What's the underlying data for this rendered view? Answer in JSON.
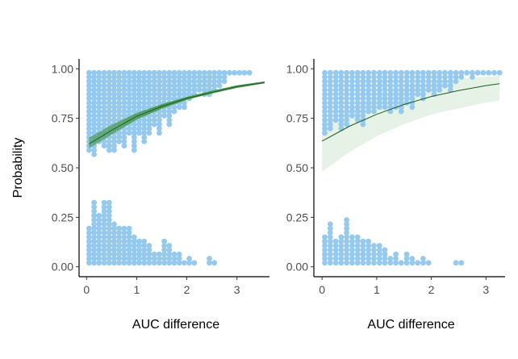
{
  "chart_data": {
    "type": "scatter",
    "ylabel": "Probability",
    "panels": [
      {
        "xlabel": "AUC difference",
        "xlim": [
          -0.15,
          3.65
        ],
        "ylim": [
          -0.05,
          1.05
        ],
        "x_ticks": [
          0,
          1,
          2,
          3
        ],
        "y_ticks": [
          0.0,
          0.25,
          0.5,
          0.75,
          1.0
        ],
        "y_tick_labels": [
          "0.00",
          "0.25",
          "0.50",
          "0.75",
          "1.00"
        ],
        "fit": {
          "x": [
            0.05,
            0.5,
            1.0,
            1.5,
            2.0,
            2.5,
            3.0,
            3.55
          ],
          "mid": [
            0.62,
            0.69,
            0.76,
            0.81,
            0.85,
            0.88,
            0.91,
            0.93
          ],
          "low": [
            0.6,
            0.67,
            0.745,
            0.8,
            0.845,
            0.877,
            0.905,
            0.928
          ],
          "high": [
            0.65,
            0.715,
            0.775,
            0.82,
            0.857,
            0.888,
            0.915,
            0.935
          ]
        },
        "upper_cluster": {
          "x_max": [
            0.05,
            0.15,
            0.25,
            0.35,
            0.45,
            0.55,
            0.65,
            0.75,
            0.85,
            0.95,
            1.05,
            1.15,
            1.25,
            1.35,
            1.45,
            1.55,
            1.65,
            1.75,
            1.85,
            1.95,
            2.05,
            2.15,
            2.25,
            2.35,
            2.45,
            2.55,
            2.65,
            2.75,
            2.85,
            2.95,
            3.05,
            3.15,
            3.25
          ],
          "y_min": [
            0.57,
            0.55,
            0.62,
            0.6,
            0.58,
            0.57,
            0.62,
            0.6,
            0.67,
            0.57,
            0.67,
            0.62,
            0.67,
            0.71,
            0.67,
            0.75,
            0.71,
            0.77,
            0.8,
            0.79,
            0.83,
            0.86,
            0.88,
            0.86,
            0.86,
            0.88,
            0.91,
            0.92,
            0.96,
            0.97,
            0.98,
            0.98,
            0.98
          ]
        },
        "lower_cluster": {
          "x_max": [
            0.05,
            0.15,
            0.25,
            0.35,
            0.45,
            0.55,
            0.65,
            0.75,
            0.85,
            0.95,
            1.05,
            1.15,
            1.25,
            1.35,
            1.45,
            1.55,
            1.65,
            1.75,
            1.85,
            1.95,
            2.05,
            2.15,
            2.45,
            2.55
          ],
          "y_max": [
            0.2,
            0.33,
            0.27,
            0.33,
            0.33,
            0.22,
            0.2,
            0.2,
            0.2,
            0.17,
            0.15,
            0.13,
            0.11,
            0.08,
            0.08,
            0.15,
            0.11,
            0.08,
            0.08,
            0.04,
            0.06,
            0.04,
            0.05,
            0.02
          ]
        }
      },
      {
        "xlabel": "AUC difference",
        "xlim": [
          -0.15,
          3.35
        ],
        "ylim": [
          -0.05,
          1.05
        ],
        "x_ticks": [
          0,
          1,
          2,
          3
        ],
        "y_ticks": [
          0.0,
          0.25,
          0.5,
          0.75,
          1.0
        ],
        "y_tick_labels": [
          "0.00",
          "0.25",
          "0.50",
          "0.75",
          "1.00"
        ],
        "fit": {
          "x": [
            0.0,
            0.5,
            1.0,
            1.5,
            2.0,
            2.5,
            3.0,
            3.25
          ],
          "mid": [
            0.635,
            0.71,
            0.77,
            0.82,
            0.86,
            0.89,
            0.915,
            0.925
          ],
          "low": [
            0.48,
            0.58,
            0.66,
            0.72,
            0.77,
            0.8,
            0.83,
            0.84
          ],
          "high": [
            0.72,
            0.8,
            0.86,
            0.9,
            0.93,
            0.95,
            0.96,
            0.965
          ]
        },
        "upper_cluster": {
          "x_max": [
            0.05,
            0.15,
            0.25,
            0.35,
            0.45,
            0.55,
            0.65,
            0.75,
            0.85,
            0.95,
            1.05,
            1.15,
            1.25,
            1.35,
            1.45,
            1.55,
            1.65,
            1.75,
            1.85,
            1.95,
            2.05,
            2.15,
            2.25,
            2.35,
            2.45,
            2.55,
            2.65,
            2.75,
            2.85,
            2.95,
            3.05,
            3.15,
            3.25
          ],
          "y_min": [
            0.67,
            0.69,
            0.72,
            0.69,
            0.71,
            0.75,
            0.74,
            0.71,
            0.78,
            0.78,
            0.8,
            0.8,
            0.78,
            0.8,
            0.78,
            0.81,
            0.8,
            0.85,
            0.83,
            0.88,
            0.86,
            0.88,
            0.91,
            0.88,
            0.92,
            0.94,
            0.96,
            0.94,
            0.98,
            0.98,
            0.98,
            0.98,
            0.98
          ]
        },
        "lower_cluster": {
          "x_max": [
            0.05,
            0.15,
            0.25,
            0.35,
            0.45,
            0.55,
            0.65,
            0.75,
            0.85,
            0.95,
            1.05,
            1.15,
            1.25,
            1.35,
            1.45,
            1.55,
            1.65,
            1.75,
            1.85,
            1.95,
            2.45,
            2.55
          ],
          "y_max": [
            0.17,
            0.22,
            0.15,
            0.17,
            0.25,
            0.17,
            0.17,
            0.15,
            0.13,
            0.11,
            0.11,
            0.1,
            0.06,
            0.08,
            0.04,
            0.08,
            0.06,
            0.04,
            0.06,
            0.02,
            0.04,
            0.02
          ]
        }
      }
    ]
  },
  "colors": {
    "point": "#95c9ee",
    "line": "#1b5e20",
    "ribbon": "#e6f2e6",
    "fit_bundle": "#4a9a50"
  }
}
